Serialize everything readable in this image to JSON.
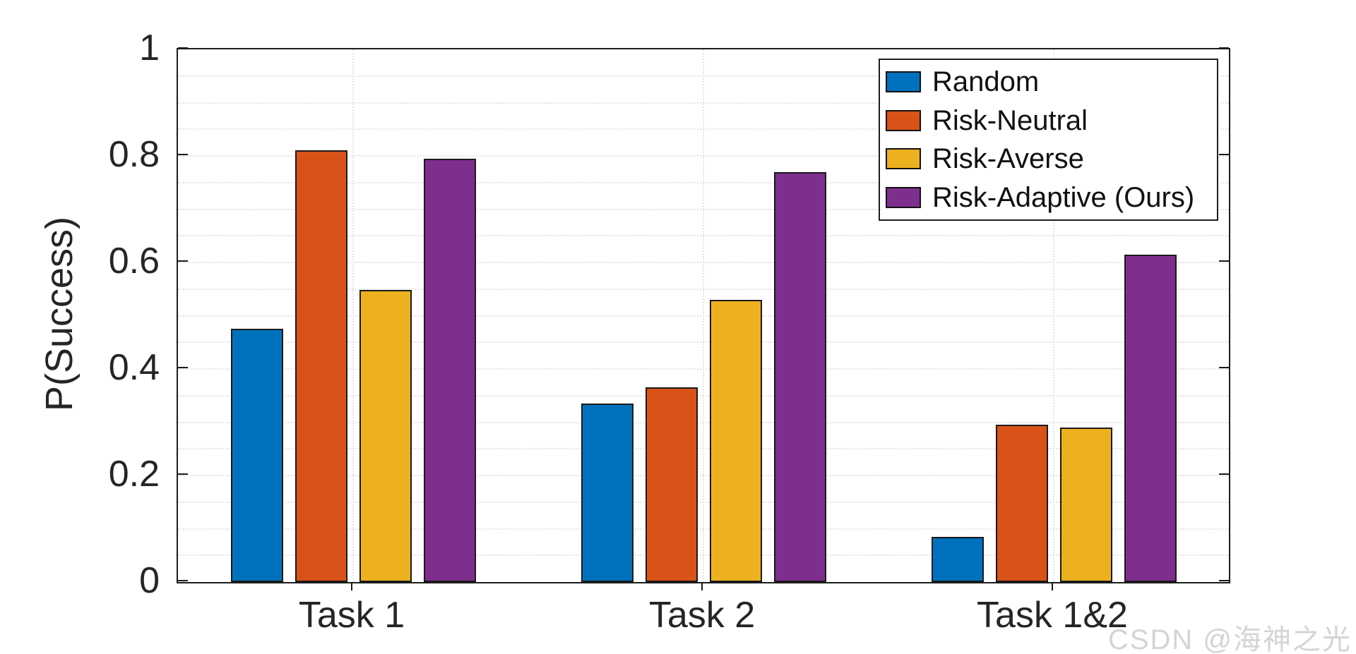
{
  "chart_data": {
    "type": "bar",
    "title": "",
    "categories": [
      "Task 1",
      "Task 2",
      "Task 1&2"
    ],
    "series": [
      {
        "name": "Random",
        "color": "#0072BD",
        "values": [
          0.475,
          0.335,
          0.085
        ]
      },
      {
        "name": "Risk-Neutral",
        "color": "#D95319",
        "values": [
          0.81,
          0.365,
          0.295
        ]
      },
      {
        "name": "Risk-Averse",
        "color": "#EDB120",
        "values": [
          0.548,
          0.53,
          0.29
        ]
      },
      {
        "name": "Risk-Adaptive (Ours)",
        "color": "#7E2F8E",
        "values": [
          0.795,
          0.77,
          0.615
        ]
      }
    ],
    "xlabel": "",
    "ylabel": "P(Success)",
    "ylim": [
      0,
      1
    ],
    "yticks": [
      0,
      0.2,
      0.4,
      0.6,
      0.8,
      1
    ],
    "ytick_labels": [
      "0",
      "0.2",
      "0.4",
      "0.6",
      "0.8",
      "1"
    ],
    "minor_grid_step": 0.05,
    "grid": "horizontal dotted minor gridlines every 0.05; vertical dotted gridline at each category center",
    "legend_position": "top-right inside plot",
    "bar_edge_color": "#1a1a1a"
  },
  "watermark": {
    "text": "CSDN @海神之光",
    "color": "#d4d4d4"
  }
}
